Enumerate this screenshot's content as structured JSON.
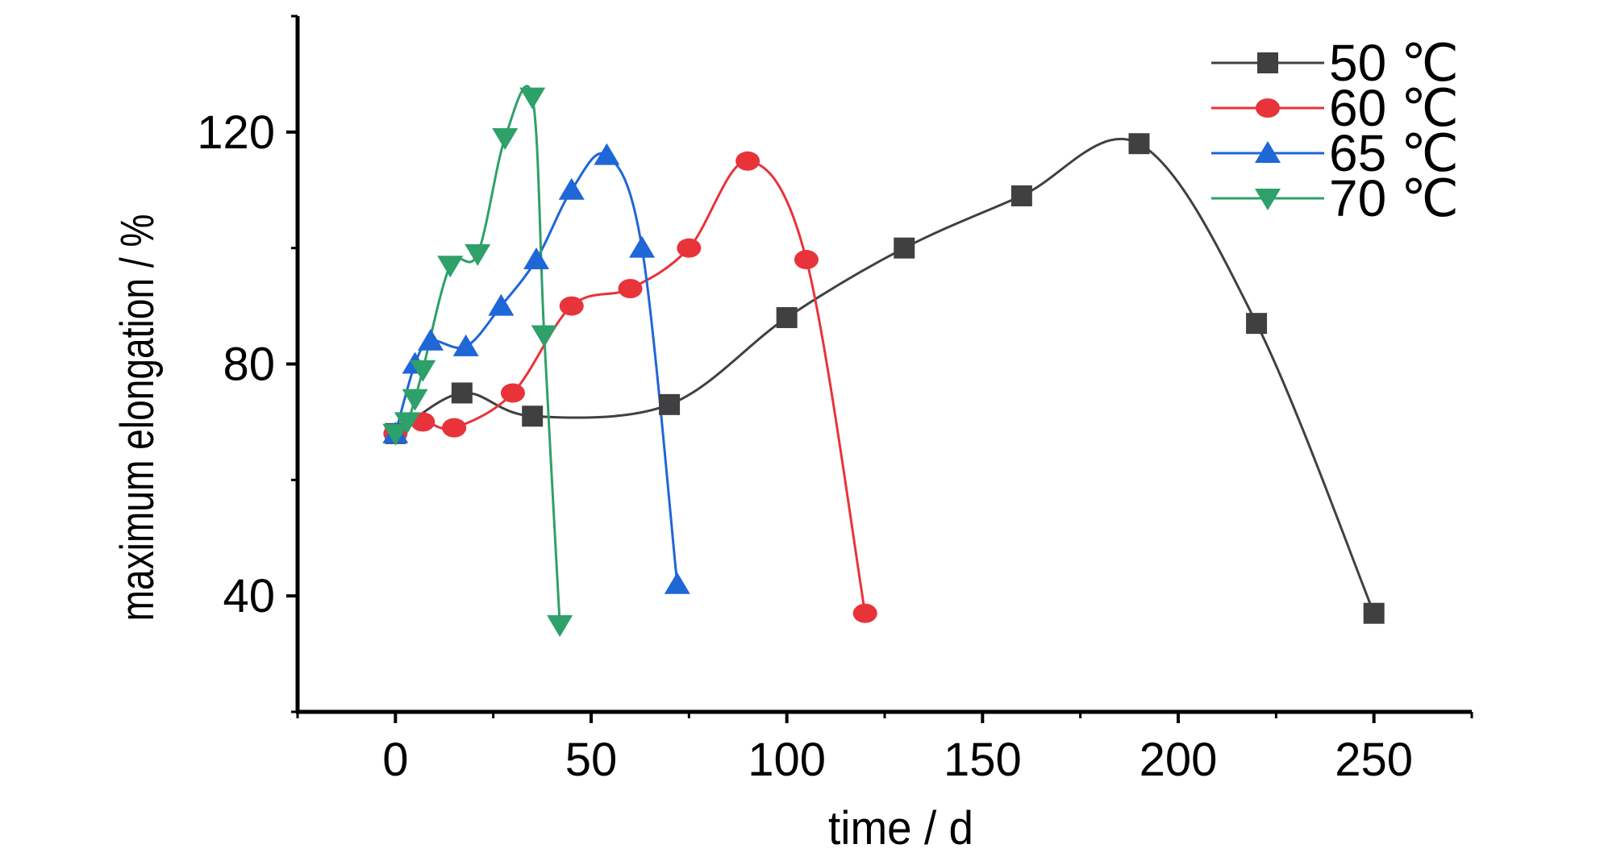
{
  "chart_data": {
    "type": "line",
    "title": "",
    "xlabel": "time / d",
    "ylabel": "maximum elongation / %",
    "xlim": [
      -25,
      275
    ],
    "ylim": [
      20,
      140
    ],
    "x_ticks": [
      0,
      50,
      100,
      150,
      200,
      250
    ],
    "y_ticks": [
      40,
      80,
      120
    ],
    "grid": false,
    "legend_position": "top-right",
    "series": [
      {
        "name": "50 ℃",
        "color": "#404040",
        "marker": "square",
        "x": [
          0,
          17,
          35,
          70,
          100,
          130,
          160,
          190,
          220,
          250
        ],
        "y": [
          68,
          75,
          71,
          73,
          88,
          100,
          109,
          118,
          87,
          37
        ]
      },
      {
        "name": "60 ℃",
        "color": "#e8333a",
        "marker": "circle",
        "x": [
          0,
          7,
          15,
          30,
          45,
          60,
          75,
          90,
          105,
          120
        ],
        "y": [
          68,
          70,
          69,
          75,
          90,
          93,
          100,
          115,
          98,
          37
        ]
      },
      {
        "name": "65 ℃",
        "color": "#1f66d6",
        "marker": "triangle-up",
        "x": [
          0,
          5,
          9,
          18,
          27,
          36,
          45,
          54,
          63,
          72
        ],
        "y": [
          68,
          80,
          84,
          83,
          90,
          98,
          110,
          116,
          100,
          42
        ]
      },
      {
        "name": "70 ℃",
        "color": "#2ea06a",
        "marker": "triangle-down",
        "x": [
          0,
          3,
          5,
          7,
          14,
          21,
          28,
          35,
          38,
          42
        ],
        "y": [
          68,
          70,
          74,
          79,
          97,
          99,
          119,
          126,
          85,
          35
        ]
      }
    ]
  }
}
